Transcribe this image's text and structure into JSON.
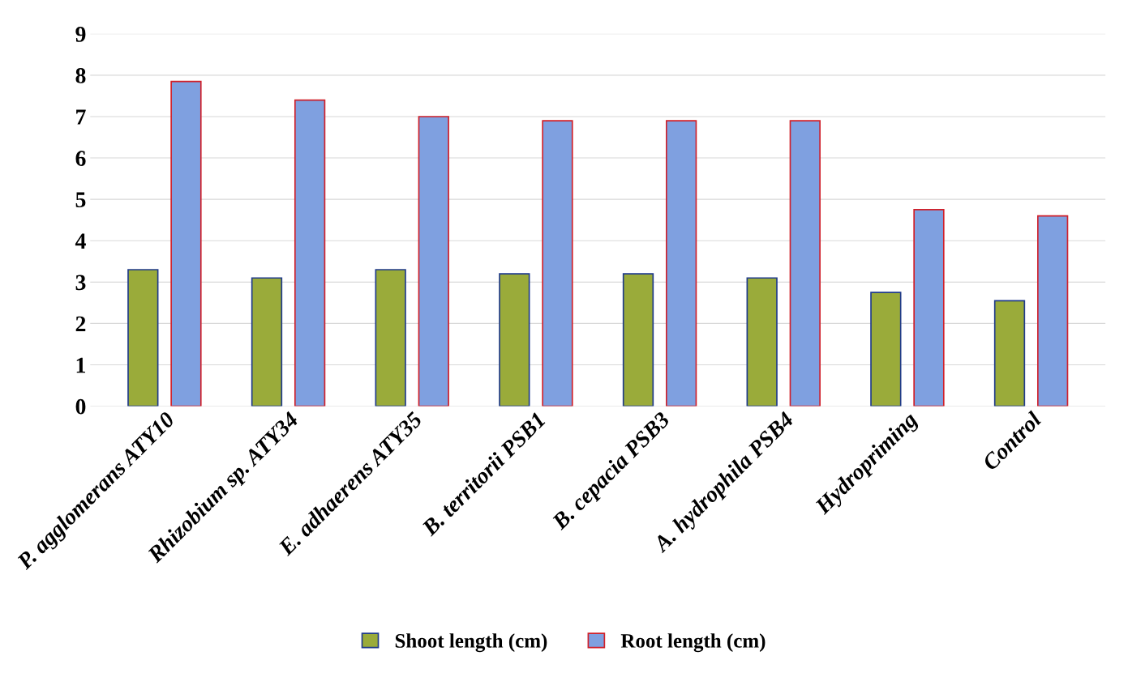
{
  "chart_data": {
    "type": "bar",
    "categories": [
      "P. agglomerans ATY10",
      "Rhizobium sp. ATY34",
      "E. adhaerens ATY35",
      "B. territorii PSB1",
      "B. cepacia PSB3",
      "A. hydrophila PSB4",
      "Hydropriming",
      "Control"
    ],
    "series": [
      {
        "name": "Shoot length (cm)",
        "color": "#9aab3a",
        "values": [
          3.3,
          3.1,
          3.3,
          3.2,
          3.2,
          3.1,
          2.75,
          2.55
        ]
      },
      {
        "name": "Root length (cm)",
        "color": "#7fa0e0",
        "values": [
          7.85,
          7.4,
          7.0,
          6.9,
          6.9,
          6.9,
          4.75,
          4.6
        ]
      }
    ],
    "ylim": [
      0,
      9
    ],
    "yticks": [
      0,
      1,
      2,
      3,
      4,
      5,
      6,
      7,
      8,
      9
    ],
    "grid": "y",
    "legend": "bottom"
  }
}
